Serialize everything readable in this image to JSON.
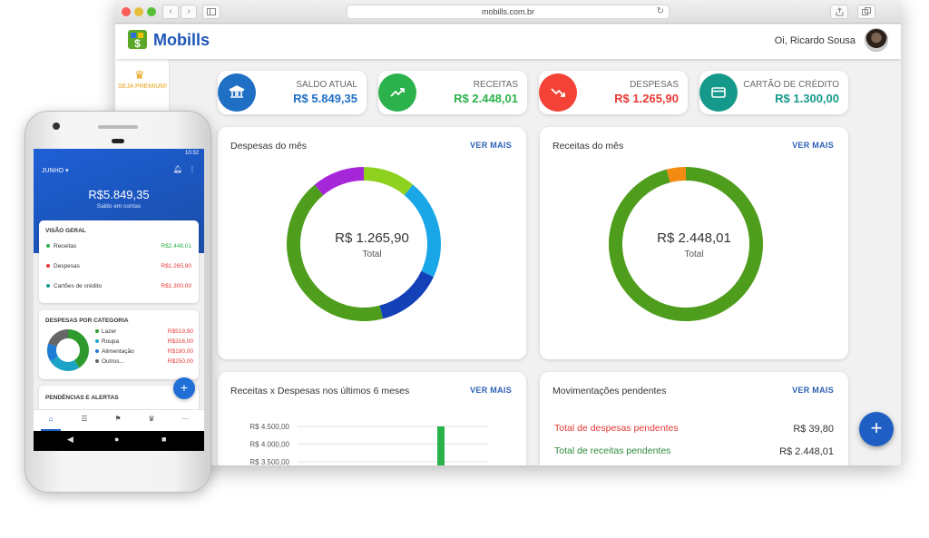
{
  "browser": {
    "url": "mobills.com.br",
    "back_icon": "‹",
    "forward_icon": "›",
    "reload_icon": "↻"
  },
  "header": {
    "brand": "Mobills",
    "greeting": "Oi, Ricardo Sousa"
  },
  "sidebar": {
    "premium_label": "SEJA PREMIUM!"
  },
  "stats": [
    {
      "label": "SALDO ATUAL",
      "value": "R$ 5.849,35",
      "icon": "bank-icon",
      "color": "#1f6fc4",
      "value_color": "#1f6fc4"
    },
    {
      "label": "RECEITAS",
      "value": "R$ 2.448,01",
      "icon": "trending-up-icon",
      "color": "#2bb24c",
      "value_color": "#2bb24c"
    },
    {
      "label": "DESPESAS",
      "value": "R$ 1.265,90",
      "icon": "trending-down-icon",
      "color": "#f44336",
      "value_color": "#e53935"
    },
    {
      "label": "CARTÃO DE CRÉDITO",
      "value": "R$ 1.300,00",
      "icon": "credit-card-icon",
      "color": "#15998a",
      "value_color": "#15998a"
    }
  ],
  "despesas_panel": {
    "title": "Despesas do mês",
    "ver_mais": "VER MAIS",
    "center_value": "R$ 1.265,90",
    "center_label": "Total"
  },
  "receitas_panel": {
    "title": "Receitas do mês",
    "ver_mais": "VER MAIS",
    "center_value": "R$ 2.448,01",
    "center_label": "Total"
  },
  "chart_panel": {
    "title": "Receitas x Despesas nos últimos 6 meses",
    "ver_mais": "VER MAIS"
  },
  "pendentes_panel": {
    "title": "Movimentações pendentes",
    "ver_mais": "VER MAIS",
    "rows": [
      {
        "label": "Total de despesas pendentes",
        "value": "R$ 39,80",
        "color": "#e53935"
      },
      {
        "label": "Total de receitas pendentes",
        "value": "R$ 2.448,01",
        "color": "#2e8b3a"
      }
    ]
  },
  "chart_data": [
    {
      "type": "pie",
      "title": "Despesas do mês",
      "values": [
        11,
        21,
        14,
        43,
        11
      ],
      "colors": [
        "#8ed11e",
        "#1aa7e8",
        "#1440b8",
        "#4f9d1c",
        "#a627d8"
      ]
    },
    {
      "type": "pie",
      "title": "Receitas do mês",
      "values": [
        96,
        4
      ],
      "colors": [
        "#4f9d1c",
        "#f48a12"
      ]
    },
    {
      "type": "bar",
      "title": "Receitas x Despesas nos últimos 6 meses",
      "y_ticks": [
        "R$ 4.500,00",
        "R$ 4.000,00",
        "R$ 3.500,00"
      ],
      "ylim": [
        3500,
        4500
      ],
      "values": [
        4500
      ],
      "bar_color": "#27b34a"
    },
    {
      "type": "pie",
      "title": "DESPESAS POR CATEGORIA",
      "values": [
        519.9,
        316,
        180,
        250
      ],
      "colors": [
        "#2e9a2e",
        "#1ba3c7",
        "#1f7cd6",
        "#666666"
      ]
    }
  ],
  "phone": {
    "time": "10:32",
    "month": "JUNHO",
    "balance": "R$5.849,35",
    "balance_label": "Saldo em contas",
    "overview_title": "VISÃO GERAL",
    "overview": [
      {
        "label": "Receitas",
        "value": "R$2.448,01",
        "color": "#2bb24c"
      },
      {
        "label": "Despesas",
        "value": "R$1.265,90",
        "color": "#e53935"
      },
      {
        "label": "Cartões de crédito",
        "value": "R$1.300,00",
        "color": "#15998a"
      }
    ],
    "categories_title": "DESPESAS POR CATEGORIA",
    "categories": [
      {
        "label": "Lazer",
        "value": "R$519,90",
        "color": "#2e9a2e"
      },
      {
        "label": "Roupa",
        "value": "R$316,00",
        "color": "#1ba3c7"
      },
      {
        "label": "Alimentação",
        "value": "R$180,00",
        "color": "#1f7cd6"
      },
      {
        "label": "Outros...",
        "value": "R$250,00",
        "color": "#666666"
      }
    ],
    "alerts_title": "PENDÊNCIAS E ALERTAS"
  }
}
